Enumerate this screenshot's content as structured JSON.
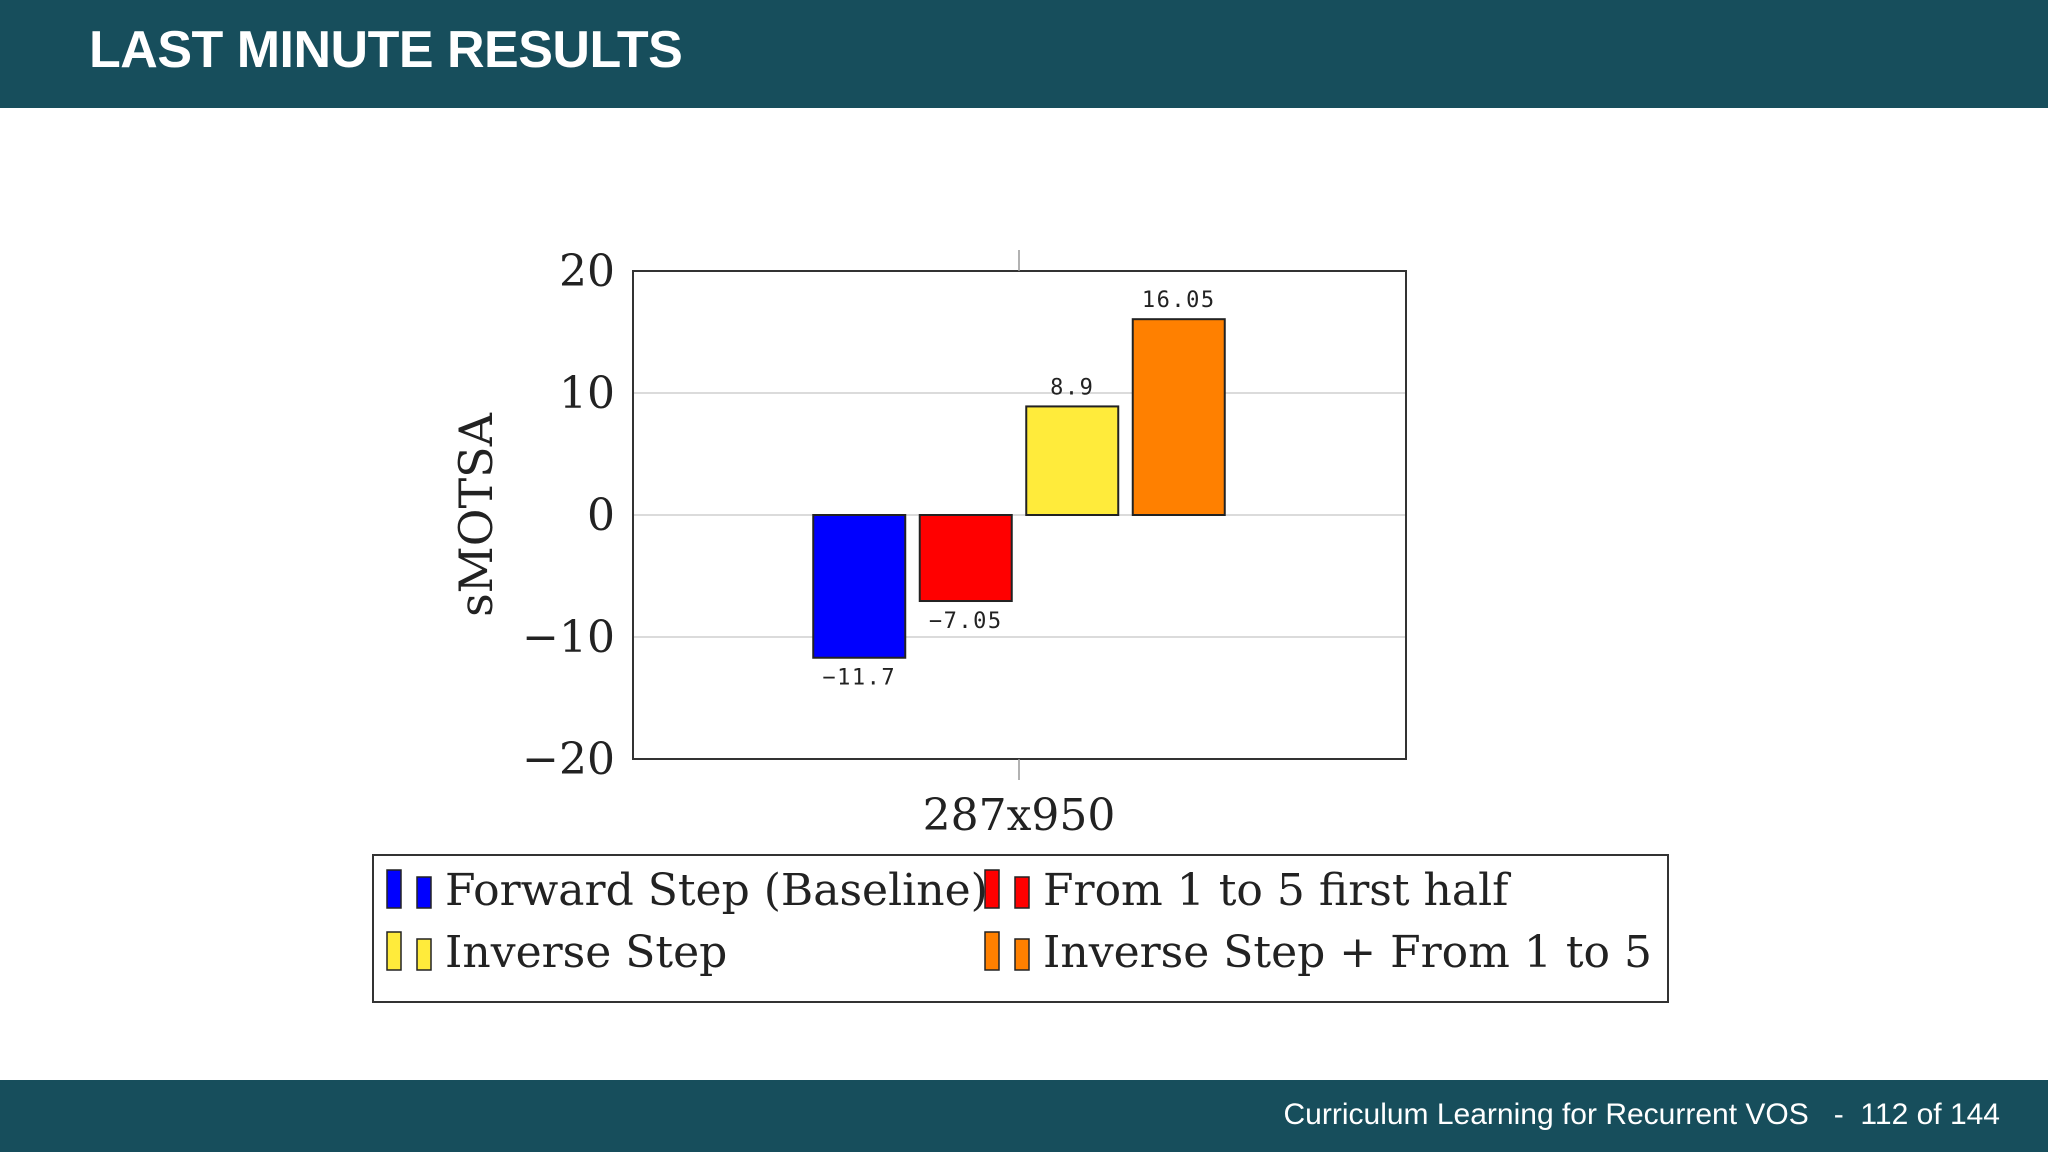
{
  "slide": {
    "title": "LAST MINUTE RESULTS",
    "footer_text": "Curriculum Learning for Recurrent VOS",
    "footer_separator": "-",
    "page": "112 of 144"
  },
  "chart_data": {
    "type": "bar",
    "categories": [
      "287x950"
    ],
    "series": [
      {
        "name": "Forward Step (Baseline)",
        "values": [
          -11.7
        ],
        "color": "#0000ff",
        "label": "−11.7"
      },
      {
        "name": "From 1 to 5 first half",
        "values": [
          -7.05
        ],
        "color": "#ff0000",
        "label": "−7.05"
      },
      {
        "name": "Inverse Step",
        "values": [
          8.9
        ],
        "color": "#ffeb3b",
        "label": "8.9"
      },
      {
        "name": "Inverse Step + From 1 to 5",
        "values": [
          16.05
        ],
        "color": "#ff8000",
        "label": "16.05"
      }
    ],
    "ylabel": "sMOTSA",
    "xlabel": "",
    "ylim": [
      -20,
      20
    ],
    "yticks": [
      20,
      10,
      0,
      -10,
      -20
    ],
    "ytick_labels": [
      "20",
      "10",
      "0",
      "−10",
      "−20"
    ],
    "grid": true,
    "legend_position": "bottom"
  }
}
